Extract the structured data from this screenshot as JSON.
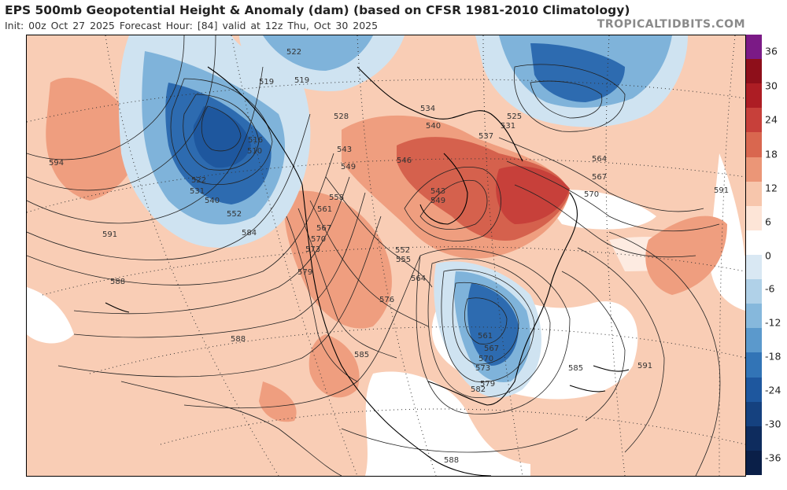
{
  "header": {
    "title": "EPS 500mb Geopotential Height & Anomaly (dam) (based on CFSR 1981-2010 Climatology)",
    "init": "Init: 00z Oct 27 2025",
    "forecast_hour": "Forecast Hour: [84]",
    "valid": "valid at 12z Thu, Oct 30 2025",
    "brand": "TROPICALTIDBITS.COM"
  },
  "colorbar": {
    "labels": [
      "36",
      "30",
      "24",
      "18",
      "12",
      "6",
      "0",
      "-6",
      "-12",
      "-18",
      "-24",
      "-30",
      "-36"
    ],
    "colors": [
      "#7b1a86",
      "#8e0f1a",
      "#ad1d24",
      "#c7403a",
      "#d9674f",
      "#eb9677",
      "#f7c6ac",
      "#fde5d7",
      "#ffffff",
      "#d9e8f3",
      "#b0d1e8",
      "#86b8dc",
      "#5b99cc",
      "#3274b6",
      "#1e579e",
      "#15417f",
      "#0e2c5e",
      "#0a1f48"
    ]
  },
  "map": {
    "anomaly_colors": {
      "pos_light": "#f9cdb5",
      "pos_med": "#ef9e7f",
      "pos_strong": "#d5614d",
      "neg_light": "#cfe3f1",
      "neg_med": "#7fb3da",
      "neg_strong": "#2d6bb0"
    },
    "contour_labels": [
      {
        "text": "522"
      },
      {
        "text": "519"
      },
      {
        "text": "519"
      },
      {
        "text": "528"
      },
      {
        "text": "534"
      },
      {
        "text": "540"
      },
      {
        "text": "525"
      },
      {
        "text": "531"
      },
      {
        "text": "537"
      },
      {
        "text": "543"
      },
      {
        "text": "546"
      },
      {
        "text": "549"
      },
      {
        "text": "543"
      },
      {
        "text": "549"
      },
      {
        "text": "564"
      },
      {
        "text": "567"
      },
      {
        "text": "570"
      },
      {
        "text": "591"
      },
      {
        "text": "594"
      },
      {
        "text": "516"
      },
      {
        "text": "510"
      },
      {
        "text": "522"
      },
      {
        "text": "531"
      },
      {
        "text": "540"
      },
      {
        "text": "552"
      },
      {
        "text": "558"
      },
      {
        "text": "561"
      },
      {
        "text": "567"
      },
      {
        "text": "570"
      },
      {
        "text": "573"
      },
      {
        "text": "579"
      },
      {
        "text": "584"
      },
      {
        "text": "591"
      },
      {
        "text": "588"
      },
      {
        "text": "552"
      },
      {
        "text": "555"
      },
      {
        "text": "564"
      },
      {
        "text": "576"
      },
      {
        "text": "588"
      },
      {
        "text": "585"
      },
      {
        "text": "561"
      },
      {
        "text": "567"
      },
      {
        "text": "570"
      },
      {
        "text": "573"
      },
      {
        "text": "579"
      },
      {
        "text": "582"
      },
      {
        "text": "585"
      },
      {
        "text": "591"
      },
      {
        "text": "588"
      }
    ]
  }
}
